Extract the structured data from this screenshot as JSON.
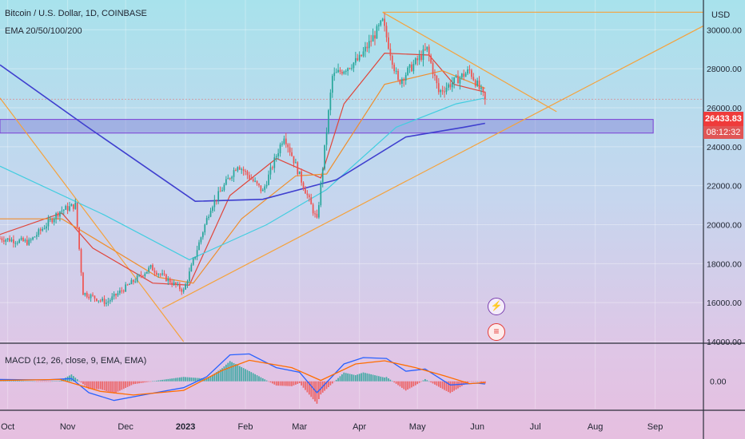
{
  "header": {
    "symbol_title": "Bitcoin / U.S. Dollar, 1D, COINBASE",
    "ema_label": "EMA 20/50/100/200",
    "macd_label": "MACD (12, 26, close, 9, EMA, EMA)",
    "currency": "USD",
    "last_price": "26433.83",
    "countdown": "08:12:32"
  },
  "annotations": {
    "flash_icon": "lightning-icon",
    "flag_icon": "us-flag-icon"
  },
  "colors": {
    "candle_up": "#26a69a",
    "candle_down": "#ef5350",
    "ema20": "#e0453a",
    "ema50": "#ef8f2f",
    "ema100": "#43cde0",
    "ema200": "#3f3fcf",
    "trendline": "#f5a23c",
    "zone": "#6a5acd",
    "macd_line": "#2962ff",
    "signal_line": "#ff6d00"
  },
  "chart_data": {
    "type": "candlestick",
    "ylim": [
      14000,
      31200
    ],
    "y_ticks": [
      14000,
      16000,
      18000,
      20000,
      22000,
      24000,
      26000,
      28000,
      30000
    ],
    "y_tick_labels": [
      "14000.00",
      "16000.00",
      "18000.00",
      "20000.00",
      "22000.00",
      "24000.00",
      "26000.00",
      "28000.00",
      "30000.00"
    ],
    "x_ticks": [
      {
        "label": "Oct",
        "date": "2022-10-01"
      },
      {
        "label": "Nov",
        "date": "2022-11-01"
      },
      {
        "label": "Dec",
        "date": "2022-12-01"
      },
      {
        "label": "2023",
        "date": "2023-01-01"
      },
      {
        "label": "Feb",
        "date": "2023-02-01"
      },
      {
        "label": "Mar",
        "date": "2023-03-01"
      },
      {
        "label": "Apr",
        "date": "2023-04-01"
      },
      {
        "label": "May",
        "date": "2023-05-01"
      },
      {
        "label": "Jun",
        "date": "2023-06-01"
      },
      {
        "label": "Jul",
        "date": "2023-07-01"
      },
      {
        "label": "Aug",
        "date": "2023-08-01"
      },
      {
        "label": "Sep",
        "date": "2023-09-01"
      }
    ],
    "date_range": [
      "2022-09-27",
      "2023-09-26"
    ],
    "last_price": 26433.83,
    "price_anchors": [
      {
        "date": "2022-09-27",
        "price": 19300
      },
      {
        "date": "2022-10-12",
        "price": 19100
      },
      {
        "date": "2022-10-28",
        "price": 20700
      },
      {
        "date": "2022-11-05",
        "price": 21000
      },
      {
        "date": "2022-11-09",
        "price": 16500
      },
      {
        "date": "2022-11-21",
        "price": 16000
      },
      {
        "date": "2022-12-14",
        "price": 17800
      },
      {
        "date": "2022-12-31",
        "price": 16600
      },
      {
        "date": "2023-01-14",
        "price": 20900
      },
      {
        "date": "2023-01-28",
        "price": 23100
      },
      {
        "date": "2023-02-10",
        "price": 21700
      },
      {
        "date": "2023-02-21",
        "price": 24600
      },
      {
        "date": "2023-03-10",
        "price": 20200
      },
      {
        "date": "2023-03-18",
        "price": 27600
      },
      {
        "date": "2023-04-01",
        "price": 28500
      },
      {
        "date": "2023-04-13",
        "price": 30400
      },
      {
        "date": "2023-04-21",
        "price": 27300
      },
      {
        "date": "2023-05-06",
        "price": 29000
      },
      {
        "date": "2023-05-12",
        "price": 26800
      },
      {
        "date": "2023-05-28",
        "price": 27900
      },
      {
        "date": "2023-06-05",
        "price": 26434
      }
    ],
    "ema_series": [
      {
        "name": "EMA 20",
        "points": [
          [
            "2022-09-27",
            19500
          ],
          [
            "2022-10-29",
            20600
          ],
          [
            "2022-11-14",
            18800
          ],
          [
            "2022-12-15",
            17000
          ],
          [
            "2023-01-03",
            16900
          ],
          [
            "2023-01-24",
            21500
          ],
          [
            "2023-02-17",
            23400
          ],
          [
            "2023-03-12",
            22400
          ],
          [
            "2023-03-24",
            26200
          ],
          [
            "2023-04-14",
            28800
          ],
          [
            "2023-05-07",
            28700
          ],
          [
            "2023-05-20",
            27200
          ],
          [
            "2023-06-05",
            26800
          ]
        ]
      },
      {
        "name": "EMA 50",
        "points": [
          [
            "2022-09-27",
            20300
          ],
          [
            "2022-10-29",
            20300
          ],
          [
            "2022-12-18",
            17300
          ],
          [
            "2023-01-05",
            17000
          ],
          [
            "2023-01-30",
            20300
          ],
          [
            "2023-02-27",
            22500
          ],
          [
            "2023-03-15",
            22600
          ],
          [
            "2023-04-14",
            27200
          ],
          [
            "2023-05-14",
            27900
          ],
          [
            "2023-06-05",
            27000
          ]
        ]
      },
      {
        "name": "EMA 100",
        "points": [
          [
            "2022-09-27",
            23000
          ],
          [
            "2022-11-20",
            20500
          ],
          [
            "2023-01-03",
            18200
          ],
          [
            "2023-02-12",
            20000
          ],
          [
            "2023-03-15",
            21800
          ],
          [
            "2023-04-20",
            25000
          ],
          [
            "2023-05-21",
            26200
          ],
          [
            "2023-06-05",
            26500
          ]
        ]
      },
      {
        "name": "EMA 200",
        "points": [
          [
            "2022-09-27",
            28200
          ],
          [
            "2022-11-10",
            25100
          ],
          [
            "2023-01-06",
            21200
          ],
          [
            "2023-02-10",
            21300
          ],
          [
            "2023-03-20",
            22300
          ],
          [
            "2023-04-25",
            24500
          ],
          [
            "2023-05-25",
            25000
          ],
          [
            "2023-06-05",
            25200
          ]
        ]
      }
    ],
    "trend_lines": [
      {
        "from": [
          "2022-12-20",
          15700
        ],
        "to": [
          "2023-09-26",
          30200
        ]
      },
      {
        "from": [
          "2023-04-13",
          30900
        ],
        "to": [
          "2023-07-12",
          25800
        ]
      },
      {
        "from": [
          "2023-04-13",
          30900
        ],
        "to": [
          "2023-09-26",
          30900
        ]
      },
      {
        "from": [
          "2022-09-27",
          26500
        ],
        "to": [
          "2022-12-31",
          14000
        ]
      }
    ],
    "support_zone": {
      "from": "2022-09-27",
      "to": "2023-08-31",
      "top": 25400,
      "bottom": 24700
    },
    "horizontal_level": 26434,
    "macd": {
      "ylim": [
        -0.6,
        0.8
      ],
      "y_ticks": [
        0
      ],
      "y_tick_labels": [
        "0.00"
      ],
      "macd_points": [
        [
          "2022-09-27",
          0.04
        ],
        [
          "2022-10-20",
          0.03
        ],
        [
          "2022-11-03",
          0.06
        ],
        [
          "2022-11-12",
          -0.25
        ],
        [
          "2022-11-25",
          -0.42
        ],
        [
          "2022-12-15",
          -0.26
        ],
        [
          "2022-12-31",
          -0.14
        ],
        [
          "2023-01-12",
          0.1
        ],
        [
          "2023-01-24",
          0.58
        ],
        [
          "2023-02-03",
          0.6
        ],
        [
          "2023-02-17",
          0.3
        ],
        [
          "2023-03-01",
          0.2
        ],
        [
          "2023-03-10",
          -0.25
        ],
        [
          "2023-03-24",
          0.38
        ],
        [
          "2023-04-03",
          0.52
        ],
        [
          "2023-04-15",
          0.5
        ],
        [
          "2023-04-25",
          0.22
        ],
        [
          "2023-05-05",
          0.27
        ],
        [
          "2023-05-18",
          -0.08
        ],
        [
          "2023-06-01",
          -0.04
        ],
        [
          "2023-06-05",
          -0.06
        ]
      ],
      "signal_points": [
        [
          "2022-09-27",
          0.02
        ],
        [
          "2022-10-28",
          0.04
        ],
        [
          "2022-11-18",
          -0.22
        ],
        [
          "2022-12-05",
          -0.3
        ],
        [
          "2022-12-31",
          -0.2
        ],
        [
          "2023-01-20",
          0.24
        ],
        [
          "2023-02-03",
          0.46
        ],
        [
          "2023-02-25",
          0.3
        ],
        [
          "2023-03-12",
          0.02
        ],
        [
          "2023-03-30",
          0.38
        ],
        [
          "2023-04-14",
          0.45
        ],
        [
          "2023-04-30",
          0.3
        ],
        [
          "2023-05-15",
          0.12
        ],
        [
          "2023-05-28",
          -0.05
        ],
        [
          "2023-06-05",
          -0.03
        ]
      ]
    }
  }
}
